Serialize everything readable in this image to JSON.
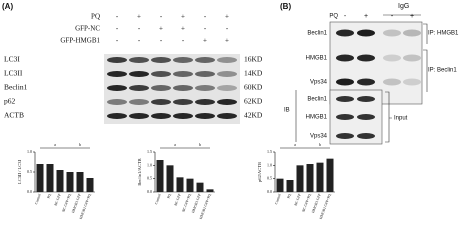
{
  "panel_a": {
    "label": "(A)",
    "treatments": [
      {
        "label": "PQ",
        "signs": [
          "-",
          "+",
          "-",
          "+",
          "-",
          "+"
        ]
      },
      {
        "label": "GFP-NC",
        "signs": [
          "-",
          "-",
          "+",
          "+",
          "-",
          "-"
        ]
      },
      {
        "label": "GFP-HMGB1",
        "signs": [
          "-",
          "-",
          "-",
          "-",
          "+",
          "+"
        ]
      }
    ],
    "blots": [
      {
        "protein": "LC3I",
        "size": "16KD"
      },
      {
        "protein": "LC3II",
        "size": "14KD"
      },
      {
        "protein": "Beclin1",
        "size": "60KD"
      },
      {
        "protein": "p62",
        "size": "62KD"
      },
      {
        "protein": "ACTB",
        "size": "42KD"
      }
    ]
  },
  "chart_data": [
    {
      "type": "bar",
      "ylabel": "LC3II / LC3I",
      "categories": [
        "Control",
        "PQ",
        "NC GFP",
        "NC GFP+PQ",
        "HMGB1 GFP",
        "HMGB1 GFP+PQ"
      ],
      "values": [
        0.7,
        0.7,
        0.55,
        0.5,
        0.5,
        0.35
      ],
      "color": "#222",
      "ylim": [
        0,
        1
      ],
      "yticks": [
        {
          "value": 0,
          "label": "0.0"
        },
        {
          "value": 0.5,
          "label": "0.5"
        },
        {
          "value": 1,
          "label": "1.0"
        }
      ],
      "annotations": [
        "a",
        "b"
      ]
    },
    {
      "type": "bar",
      "ylabel": "Beclin1/ACTB",
      "categories": [
        "Control",
        "PQ",
        "NC GFP",
        "NC GFP+PQ",
        "HMGB1 GFP",
        "HMGB1 GFP+PQ"
      ],
      "values": [
        1.2,
        1.0,
        0.55,
        0.5,
        0.35,
        0.1
      ],
      "color": "#222",
      "ylim": [
        0,
        1.5
      ],
      "yticks": [
        {
          "value": 0,
          "label": "0.0"
        },
        {
          "value": 0.5,
          "label": "0.5"
        },
        {
          "value": 1,
          "label": "1.0"
        },
        {
          "value": 1.5,
          "label": "1.5"
        }
      ],
      "annotations": [
        "a",
        "b"
      ]
    },
    {
      "type": "bar",
      "ylabel": "p62/ACTB",
      "categories": [
        "Control",
        "PQ",
        "NC GFP",
        "NC GFP+PQ",
        "HMGB1 GFP",
        "HMGB1 GFP+PQ"
      ],
      "values": [
        0.5,
        0.45,
        1.0,
        1.05,
        1.1,
        1.25
      ],
      "color": "#222",
      "ylim": [
        0,
        1.5
      ],
      "yticks": [
        {
          "value": 0,
          "label": "0.0"
        },
        {
          "value": 0.5,
          "label": "0.5"
        },
        {
          "value": 1,
          "label": "1.0"
        },
        {
          "value": 1.5,
          "label": "1.5"
        }
      ],
      "annotations": [
        "a",
        "b"
      ]
    }
  ],
  "panel_b": {
    "label": "(B)",
    "igg": "IgG",
    "pq": {
      "label": "PQ",
      "signs": [
        "-",
        "+",
        "-",
        "+"
      ]
    },
    "ip_rows": [
      "Beclin1",
      "HMGB1",
      "Vps34"
    ],
    "input_rows": [
      "Beclin1",
      "HMGB1",
      "Vps34"
    ],
    "ip_hmgb1": "IP: HMGB1",
    "ip_beclin1": "IP: Beclin1",
    "ib": "IB",
    "input": "Input"
  }
}
